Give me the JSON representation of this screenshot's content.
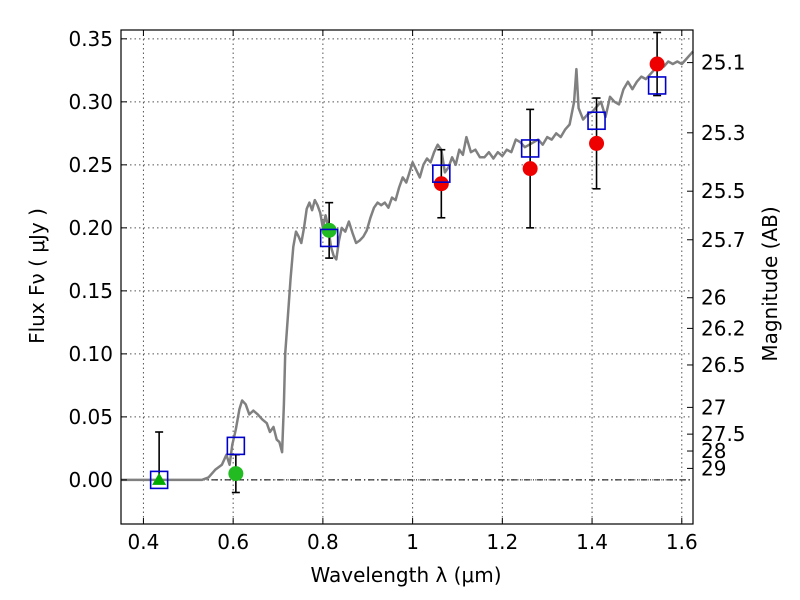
{
  "chart_data": {
    "type": "scatter",
    "title": "",
    "xlabel": "Wavelength  λ (μm)",
    "ylabel": "Flux  Fν  ( μJy )",
    "ylabel_right": "Magnitude (AB)",
    "xlim": [
      0.35,
      1.625
    ],
    "ylim": [
      -0.035,
      0.357
    ],
    "grid": true,
    "x_ticks": [
      {
        "v": 0.4,
        "label": "0.4"
      },
      {
        "v": 0.6,
        "label": "0.6"
      },
      {
        "v": 0.8,
        "label": "0.8"
      },
      {
        "v": 1.0,
        "label": "1"
      },
      {
        "v": 1.2,
        "label": "1.2"
      },
      {
        "v": 1.4,
        "label": "1.4"
      },
      {
        "v": 1.6,
        "label": "1.6"
      }
    ],
    "y_ticks": [
      {
        "v": 0.0,
        "label": "0.00"
      },
      {
        "v": 0.05,
        "label": "0.05"
      },
      {
        "v": 0.1,
        "label": "0.10"
      },
      {
        "v": 0.15,
        "label": "0.15"
      },
      {
        "v": 0.2,
        "label": "0.20"
      },
      {
        "v": 0.25,
        "label": "0.25"
      },
      {
        "v": 0.3,
        "label": "0.30"
      },
      {
        "v": 0.35,
        "label": "0.35"
      }
    ],
    "mag_ticks": [
      {
        "mag": 25.1,
        "label": "25.1"
      },
      {
        "mag": 25.3,
        "label": "25.3"
      },
      {
        "mag": 25.5,
        "label": "25.5"
      },
      {
        "mag": 25.7,
        "label": "25.7"
      },
      {
        "mag": 26,
        "label": "26"
      },
      {
        "mag": 26.2,
        "label": "26.2"
      },
      {
        "mag": 26.5,
        "label": "26.5"
      },
      {
        "mag": 27,
        "label": "27"
      },
      {
        "mag": 27.5,
        "label": "27.5"
      },
      {
        "mag": 28,
        "label": "28"
      },
      {
        "mag": 29,
        "label": "29"
      }
    ],
    "model_spectrum": [
      [
        0.35,
        0.0
      ],
      [
        0.53,
        0.0
      ],
      [
        0.545,
        0.002
      ],
      [
        0.56,
        0.008
      ],
      [
        0.575,
        0.012
      ],
      [
        0.585,
        0.02
      ],
      [
        0.592,
        0.012
      ],
      [
        0.598,
        0.028
      ],
      [
        0.606,
        0.04
      ],
      [
        0.614,
        0.056
      ],
      [
        0.62,
        0.063
      ],
      [
        0.628,
        0.06
      ],
      [
        0.636,
        0.052
      ],
      [
        0.645,
        0.055
      ],
      [
        0.655,
        0.052
      ],
      [
        0.665,
        0.048
      ],
      [
        0.675,
        0.045
      ],
      [
        0.682,
        0.038
      ],
      [
        0.69,
        0.042
      ],
      [
        0.697,
        0.032
      ],
      [
        0.703,
        0.03
      ],
      [
        0.709,
        0.022
      ],
      [
        0.713,
        0.06
      ],
      [
        0.716,
        0.1
      ],
      [
        0.722,
        0.13
      ],
      [
        0.728,
        0.16
      ],
      [
        0.734,
        0.185
      ],
      [
        0.74,
        0.197
      ],
      [
        0.746,
        0.193
      ],
      [
        0.752,
        0.188
      ],
      [
        0.758,
        0.2
      ],
      [
        0.764,
        0.215
      ],
      [
        0.77,
        0.22
      ],
      [
        0.776,
        0.214
      ],
      [
        0.782,
        0.222
      ],
      [
        0.788,
        0.218
      ],
      [
        0.794,
        0.212
      ],
      [
        0.8,
        0.2
      ],
      [
        0.806,
        0.21
      ],
      [
        0.812,
        0.2
      ],
      [
        0.818,
        0.185
      ],
      [
        0.824,
        0.178
      ],
      [
        0.83,
        0.175
      ],
      [
        0.836,
        0.19
      ],
      [
        0.842,
        0.2
      ],
      [
        0.85,
        0.197
      ],
      [
        0.858,
        0.205
      ],
      [
        0.866,
        0.196
      ],
      [
        0.874,
        0.188
      ],
      [
        0.882,
        0.19
      ],
      [
        0.89,
        0.193
      ],
      [
        0.898,
        0.198
      ],
      [
        0.906,
        0.208
      ],
      [
        0.914,
        0.216
      ],
      [
        0.922,
        0.22
      ],
      [
        0.93,
        0.218
      ],
      [
        0.938,
        0.22
      ],
      [
        0.946,
        0.216
      ],
      [
        0.954,
        0.224
      ],
      [
        0.962,
        0.222
      ],
      [
        0.97,
        0.232
      ],
      [
        0.978,
        0.24
      ],
      [
        0.986,
        0.236
      ],
      [
        0.994,
        0.245
      ],
      [
        1.0,
        0.252
      ],
      [
        1.008,
        0.246
      ],
      [
        1.016,
        0.24
      ],
      [
        1.024,
        0.25
      ],
      [
        1.032,
        0.255
      ],
      [
        1.04,
        0.252
      ],
      [
        1.048,
        0.26
      ],
      [
        1.056,
        0.266
      ],
      [
        1.064,
        0.262
      ],
      [
        1.072,
        0.244
      ],
      [
        1.08,
        0.248
      ],
      [
        1.088,
        0.256
      ],
      [
        1.096,
        0.25
      ],
      [
        1.104,
        0.262
      ],
      [
        1.112,
        0.258
      ],
      [
        1.12,
        0.272
      ],
      [
        1.13,
        0.26
      ],
      [
        1.14,
        0.262
      ],
      [
        1.15,
        0.256
      ],
      [
        1.16,
        0.256
      ],
      [
        1.17,
        0.26
      ],
      [
        1.18,
        0.255
      ],
      [
        1.19,
        0.26
      ],
      [
        1.2,
        0.257
      ],
      [
        1.21,
        0.262
      ],
      [
        1.22,
        0.26
      ],
      [
        1.23,
        0.27
      ],
      [
        1.24,
        0.268
      ],
      [
        1.25,
        0.264
      ],
      [
        1.26,
        0.266
      ],
      [
        1.27,
        0.268
      ],
      [
        1.28,
        0.27
      ],
      [
        1.29,
        0.266
      ],
      [
        1.3,
        0.272
      ],
      [
        1.31,
        0.27
      ],
      [
        1.32,
        0.275
      ],
      [
        1.33,
        0.272
      ],
      [
        1.34,
        0.278
      ],
      [
        1.35,
        0.282
      ],
      [
        1.36,
        0.3
      ],
      [
        1.365,
        0.326
      ],
      [
        1.37,
        0.295
      ],
      [
        1.38,
        0.286
      ],
      [
        1.39,
        0.29
      ],
      [
        1.4,
        0.292
      ],
      [
        1.41,
        0.296
      ],
      [
        1.42,
        0.3
      ],
      [
        1.43,
        0.288
      ],
      [
        1.44,
        0.304
      ],
      [
        1.45,
        0.3
      ],
      [
        1.46,
        0.298
      ],
      [
        1.47,
        0.31
      ],
      [
        1.48,
        0.316
      ],
      [
        1.49,
        0.31
      ],
      [
        1.5,
        0.316
      ],
      [
        1.51,
        0.32
      ],
      [
        1.52,
        0.318
      ],
      [
        1.53,
        0.322
      ],
      [
        1.54,
        0.326
      ],
      [
        1.55,
        0.33
      ],
      [
        1.56,
        0.328
      ],
      [
        1.57,
        0.332
      ],
      [
        1.58,
        0.33
      ],
      [
        1.59,
        0.332
      ],
      [
        1.6,
        0.33
      ],
      [
        1.61,
        0.334
      ],
      [
        1.62,
        0.338
      ],
      [
        1.625,
        0.34
      ]
    ],
    "model_photometry": [
      {
        "x": 0.435,
        "y": 0.0
      },
      {
        "x": 0.606,
        "y": 0.027
      },
      {
        "x": 0.814,
        "y": 0.192
      },
      {
        "x": 1.064,
        "y": 0.243
      },
      {
        "x": 1.262,
        "y": 0.263
      },
      {
        "x": 1.41,
        "y": 0.285
      },
      {
        "x": 1.545,
        "y": 0.313
      }
    ],
    "observed": [
      {
        "x": 0.435,
        "y": 0.0,
        "err_lo": 0.0,
        "err_hi": 0.038,
        "marker": "triangle",
        "color": "#00aa00"
      },
      {
        "x": 0.606,
        "y": 0.005,
        "err_lo": 0.015,
        "err_hi": 0.015,
        "marker": "circle",
        "color": "#22bb22"
      },
      {
        "x": 0.814,
        "y": 0.198,
        "err_lo": 0.022,
        "err_hi": 0.022,
        "marker": "circle",
        "color": "#22bb22"
      },
      {
        "x": 1.064,
        "y": 0.235,
        "err_lo": 0.027,
        "err_hi": 0.027,
        "marker": "circle",
        "color": "#ee0000"
      },
      {
        "x": 1.262,
        "y": 0.247,
        "err_lo": 0.047,
        "err_hi": 0.047,
        "marker": "circle",
        "color": "#ee0000"
      },
      {
        "x": 1.41,
        "y": 0.267,
        "err_lo": 0.036,
        "err_hi": 0.036,
        "marker": "circle",
        "color": "#ee0000"
      },
      {
        "x": 1.545,
        "y": 0.33,
        "err_lo": 0.025,
        "err_hi": 0.025,
        "marker": "circle",
        "color": "#ee0000"
      }
    ],
    "colors": {
      "spectrum": "#808080",
      "model_box": "#0000cc",
      "error_bar": "#000000"
    }
  }
}
